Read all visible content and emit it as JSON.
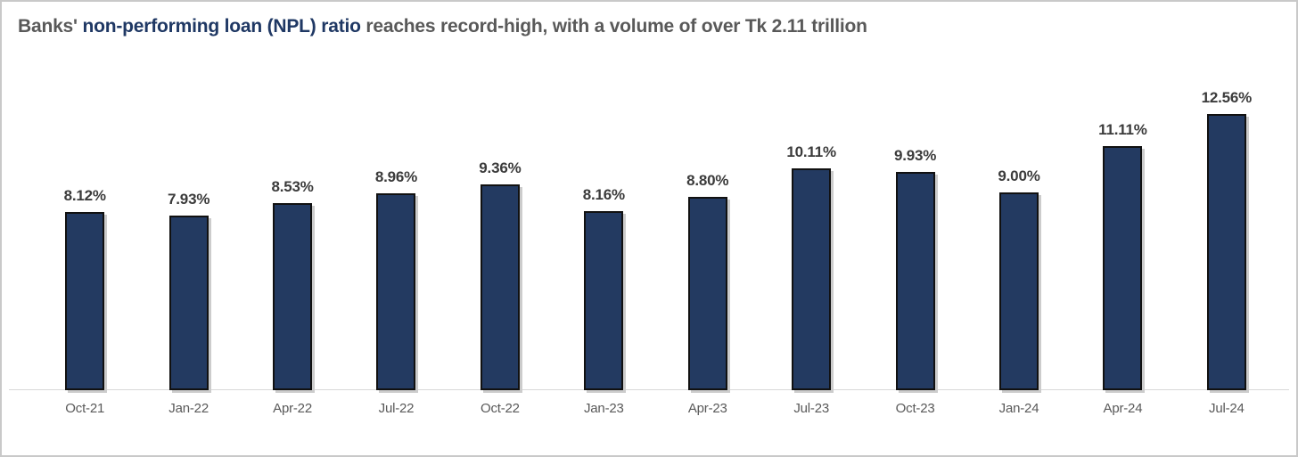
{
  "title": {
    "prefix": "Banks'",
    "highlight": "non-performing loan (NPL) ratio",
    "suffix": "reaches record-high, with a volume of over Tk 2.11 trillion"
  },
  "colors": {
    "bar_fill": "#233a61",
    "bar_border": "#111111",
    "bar_shadow": "#cccccc",
    "title_gray": "#595959",
    "title_navy": "#1f3864",
    "axis_line": "#d9d9d9",
    "value_label": "#3b3b3b",
    "category_label": "#595959"
  },
  "chart_data": {
    "type": "bar",
    "title": "Banks' non-performing loan (NPL) ratio reaches record-high, with a volume of over Tk 2.11 trillion",
    "categories": [
      "Oct-21",
      "Jan-22",
      "Apr-22",
      "Jul-22",
      "Oct-22",
      "Jan-23",
      "Apr-23",
      "Jul-23",
      "Oct-23",
      "Jan-24",
      "Apr-24",
      "Jul-24"
    ],
    "values": [
      8.12,
      7.93,
      8.53,
      8.96,
      9.36,
      8.16,
      8.8,
      10.11,
      9.93,
      9.0,
      11.11,
      12.56
    ],
    "value_labels": [
      "8.12%",
      "7.93%",
      "8.53%",
      "8.96%",
      "9.36%",
      "8.16%",
      "8.80%",
      "10.11%",
      "9.93%",
      "9.00%",
      "11.11%",
      "12.56%"
    ],
    "xlabel": "",
    "ylabel": "",
    "ylim": [
      0,
      13
    ],
    "grid": false,
    "legend": false,
    "data_label_position": "above-bar"
  }
}
